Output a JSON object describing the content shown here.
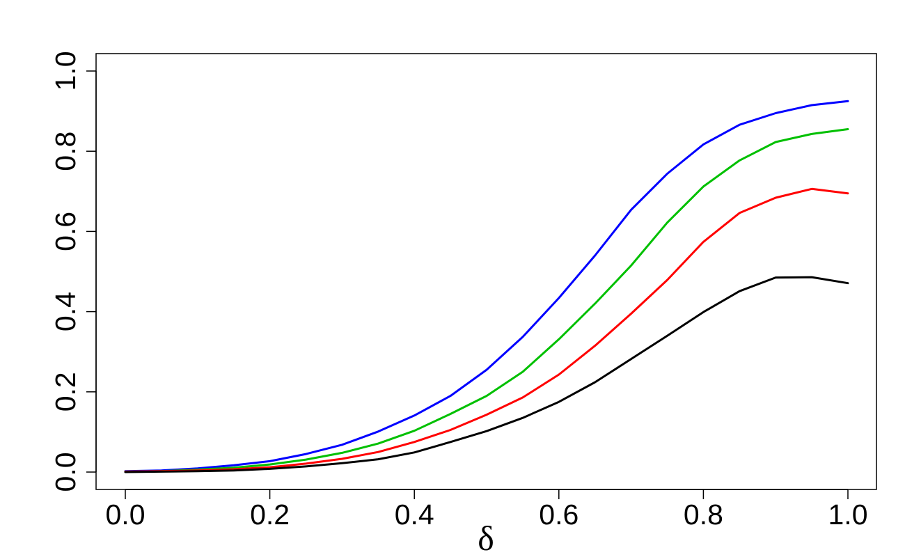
{
  "chart_data": {
    "type": "line",
    "title": "",
    "xlabel": "δ",
    "ylabel": "",
    "xlim": [
      0.0,
      1.0
    ],
    "ylim": [
      0.0,
      1.0
    ],
    "grid": false,
    "legend": "none",
    "x_ticks": [
      "0.0",
      "0.2",
      "0.4",
      "0.6",
      "0.8",
      "1.0"
    ],
    "y_ticks": [
      "0.0",
      "0.2",
      "0.4",
      "0.6",
      "0.8",
      "1.0"
    ],
    "x": [
      0.0,
      0.05,
      0.1,
      0.15,
      0.2,
      0.25,
      0.3,
      0.35,
      0.4,
      0.45,
      0.5,
      0.55,
      0.6,
      0.65,
      0.7,
      0.75,
      0.8,
      0.85,
      0.9,
      0.95,
      1.0
    ],
    "series": [
      {
        "color": "#0000ff",
        "values": [
          0.002,
          0.004,
          0.009,
          0.017,
          0.027,
          0.045,
          0.068,
          0.101,
          0.141,
          0.19,
          0.255,
          0.337,
          0.434,
          0.54,
          0.654,
          0.744,
          0.817,
          0.866,
          0.895,
          0.915,
          0.925
        ]
      },
      {
        "color": "#00c000",
        "values": [
          0.001,
          0.002,
          0.006,
          0.011,
          0.019,
          0.031,
          0.048,
          0.071,
          0.103,
          0.145,
          0.19,
          0.25,
          0.331,
          0.42,
          0.515,
          0.622,
          0.712,
          0.777,
          0.823,
          0.843,
          0.855
        ]
      },
      {
        "color": "#ff0000",
        "values": [
          0.001,
          0.002,
          0.004,
          0.007,
          0.012,
          0.021,
          0.033,
          0.05,
          0.075,
          0.105,
          0.143,
          0.186,
          0.243,
          0.315,
          0.395,
          0.479,
          0.574,
          0.646,
          0.684,
          0.706,
          0.695
        ]
      },
      {
        "color": "#000000",
        "values": [
          0.0,
          0.001,
          0.002,
          0.004,
          0.008,
          0.014,
          0.022,
          0.032,
          0.049,
          0.075,
          0.102,
          0.135,
          0.175,
          0.224,
          0.282,
          0.34,
          0.399,
          0.451,
          0.485,
          0.486,
          0.471
        ]
      }
    ]
  }
}
